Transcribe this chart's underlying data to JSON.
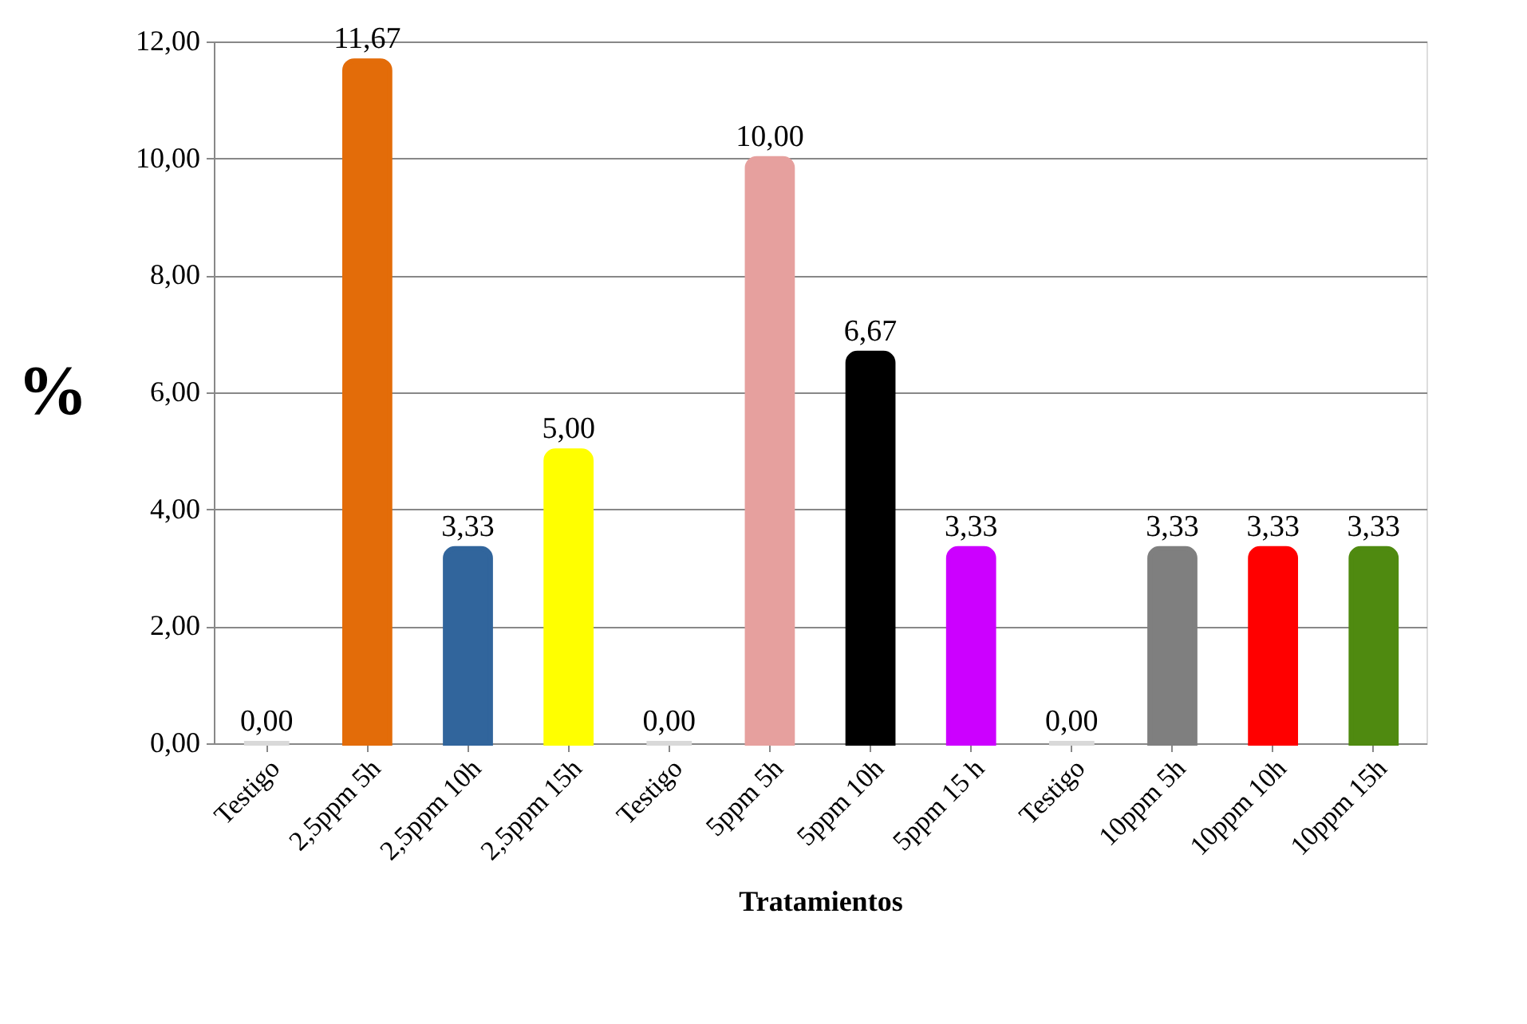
{
  "chart_data": {
    "type": "bar",
    "categories": [
      "Testigo",
      "2,5ppm 5h",
      "2,5ppm 10h",
      "2,5ppm 15h",
      "Testigo",
      "5ppm 5h",
      "5ppm 10h",
      "5ppm 15 h",
      "Testigo",
      "10ppm 5h",
      "10ppm 10h",
      "10ppm 15h"
    ],
    "values": [
      0,
      11.67,
      3.33,
      5.0,
      0,
      10.0,
      6.67,
      3.33,
      0,
      3.33,
      3.33,
      3.33
    ],
    "colors": [
      "#d9d9d9",
      "#e36c09",
      "#31659c",
      "#ffff00",
      "#d9d9d9",
      "#e6a09e",
      "#000000",
      "#cc00ff",
      "#d9d9d9",
      "#7f7f7f",
      "#ff0000",
      "#4f8a10"
    ],
    "value_labels": [
      "0,00",
      "11,67",
      "3,33",
      "5,00",
      "0,00",
      "10,00",
      "6,67",
      "3,33",
      "0,00",
      "3,33",
      "3,33",
      "3,33"
    ],
    "xlabel": "Tratamientos",
    "ylabel": "%",
    "ylim": [
      0,
      12
    ],
    "yticks": [
      {
        "value": 0,
        "label": "0,00"
      },
      {
        "value": 2,
        "label": "2,00"
      },
      {
        "value": 4,
        "label": "4,00"
      },
      {
        "value": 6,
        "label": "6,00"
      },
      {
        "value": 8,
        "label": "8,00"
      },
      {
        "value": 10,
        "label": "10,00"
      },
      {
        "value": 12,
        "label": "12,00"
      }
    ],
    "grid": "y"
  }
}
